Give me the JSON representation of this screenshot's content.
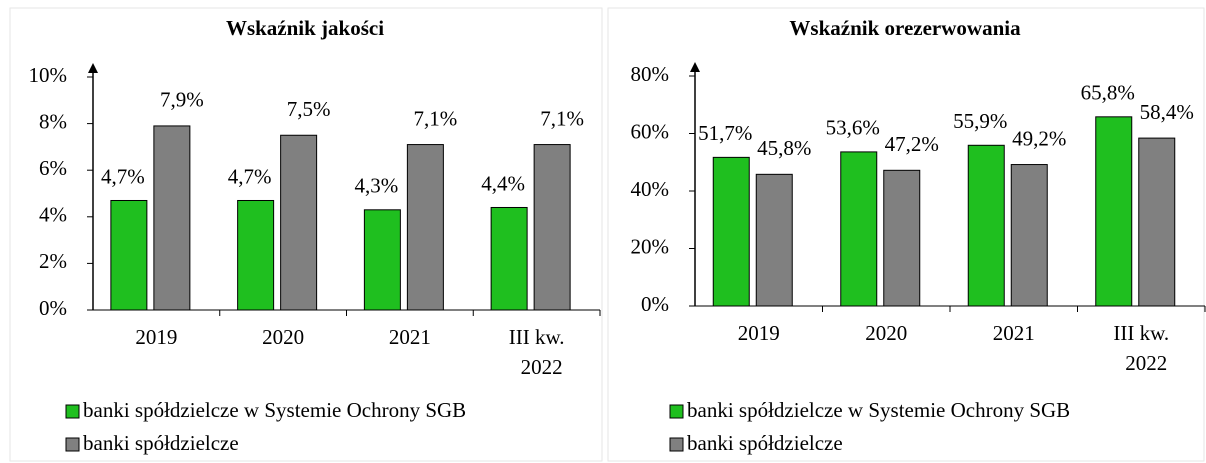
{
  "chart_data": [
    {
      "type": "bar",
      "title": "Wskaźnik jakości",
      "categories": [
        "2019",
        "2020",
        "2021",
        "III kw. 2022"
      ],
      "series": [
        {
          "name": "banki spółdzielcze w Systemie Ochrony SGB",
          "color": "#1fbf1f",
          "values": [
            4.7,
            4.7,
            4.3,
            4.4
          ],
          "value_labels": [
            "4,7%",
            "4,7%",
            "4,3%",
            "4,4%"
          ]
        },
        {
          "name": "banki spółdzielcze",
          "color": "#808080",
          "values": [
            7.9,
            7.5,
            7.1,
            7.1
          ],
          "value_labels": [
            "7,9%",
            "7,5%",
            "7,1%",
            "7,1%"
          ]
        }
      ],
      "ylim": [
        0,
        10
      ],
      "yticks": [
        {
          "value": 0,
          "label": "0%"
        },
        {
          "value": 2,
          "label": "2%"
        },
        {
          "value": 4,
          "label": "4%"
        },
        {
          "value": 6,
          "label": "6%"
        },
        {
          "value": 8,
          "label": "8%"
        },
        {
          "value": 10,
          "label": "10%"
        }
      ]
    },
    {
      "type": "bar",
      "title": "Wskaźnik orezerwowania",
      "categories": [
        "2019",
        "2020",
        "2021",
        "III kw. 2022"
      ],
      "series": [
        {
          "name": "banki spółdzielcze w Systemie Ochrony SGB",
          "color": "#1fbf1f",
          "values": [
            51.7,
            53.6,
            55.9,
            65.8
          ],
          "value_labels": [
            "51,7%",
            "53,6%",
            "55,9%",
            "65,8%"
          ]
        },
        {
          "name": "banki spółdzielcze",
          "color": "#808080",
          "values": [
            45.8,
            47.2,
            49.2,
            58.4
          ],
          "value_labels": [
            "45,8%",
            "47,2%",
            "49,2%",
            "58,4%"
          ]
        }
      ],
      "ylim": [
        0,
        80
      ],
      "yticks": [
        {
          "value": 0,
          "label": "0%"
        },
        {
          "value": 20,
          "label": "20%"
        },
        {
          "value": 40,
          "label": "40%"
        },
        {
          "value": 60,
          "label": "60%"
        },
        {
          "value": 80,
          "label": "80%"
        }
      ]
    }
  ]
}
